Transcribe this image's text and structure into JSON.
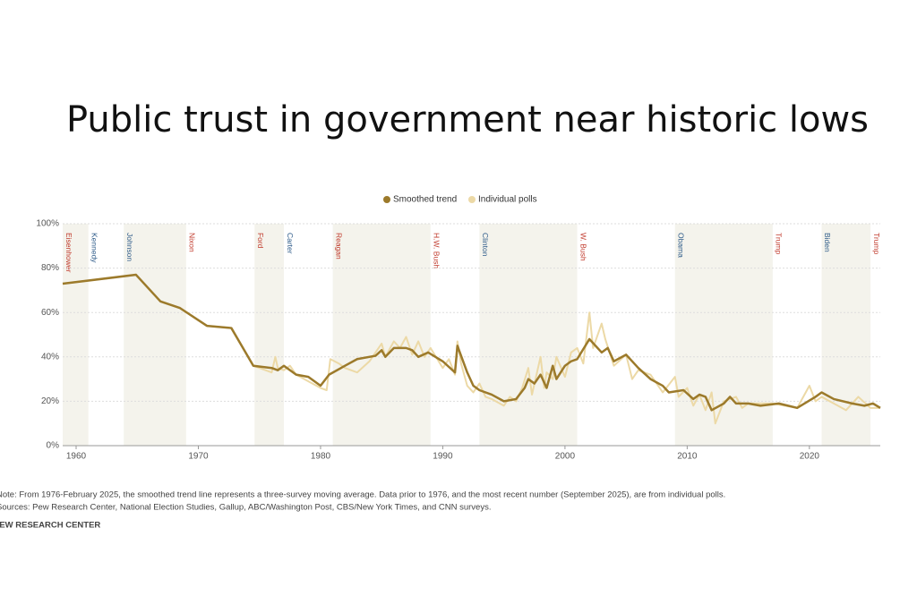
{
  "chart_data": {
    "type": "line",
    "title": "Public trust in government near historic lows",
    "note": "Note: From 1976-February 2025, the smoothed trend line represents a three-survey moving average. Data prior to 1976, and the most recent number (September 2025), are from individual polls.",
    "source": "Sources: Pew Research Center, National Election Studies, Gallup, ABC/Washington Post, CBS/New York Times, and CNN surveys.",
    "credit": "PEW RESEARCH CENTER",
    "xlim": [
      1958.9,
      2025.8
    ],
    "xticks": [
      1960,
      1970,
      1980,
      1990,
      2000,
      2010,
      2020
    ],
    "ylim": [
      0,
      100
    ],
    "yticks": [
      {
        "value": 0,
        "label": "0%"
      },
      {
        "value": 20,
        "label": "20%"
      },
      {
        "value": 40,
        "label": "40%"
      },
      {
        "value": 60,
        "label": "60%"
      },
      {
        "value": 80,
        "label": "80%"
      },
      {
        "value": 100,
        "label": "100%"
      }
    ],
    "grid": true,
    "presidents": [
      {
        "name": "Eisenhower",
        "start": 1958.9,
        "end": 1961,
        "color": "#c0392b",
        "shaded": true
      },
      {
        "name": "Kennedy",
        "start": 1961,
        "end": 1963.9,
        "color": "#2f5c8a",
        "shaded": false
      },
      {
        "name": "Johnson",
        "start": 1963.9,
        "end": 1969,
        "color": "#2f5c8a",
        "shaded": true
      },
      {
        "name": "Nixon",
        "start": 1969,
        "end": 1974.6,
        "color": "#c0392b",
        "shaded": false
      },
      {
        "name": "Ford",
        "start": 1974.6,
        "end": 1977,
        "color": "#c0392b",
        "shaded": true
      },
      {
        "name": "Carter",
        "start": 1977,
        "end": 1981,
        "color": "#2f5c8a",
        "shaded": false
      },
      {
        "name": "Reagan",
        "start": 1981,
        "end": 1989,
        "color": "#c0392b",
        "shaded": true
      },
      {
        "name": "H.W. Bush",
        "start": 1989,
        "end": 1993,
        "color": "#c0392b",
        "shaded": false
      },
      {
        "name": "Clinton",
        "start": 1993,
        "end": 2001,
        "color": "#2f5c8a",
        "shaded": true
      },
      {
        "name": "W. Bush",
        "start": 2001,
        "end": 2009,
        "color": "#c0392b",
        "shaded": false
      },
      {
        "name": "Obama",
        "start": 2009,
        "end": 2017,
        "color": "#2f5c8a",
        "shaded": true
      },
      {
        "name": "Trump",
        "start": 2017,
        "end": 2021,
        "color": "#c0392b",
        "shaded": false
      },
      {
        "name": "Biden",
        "start": 2021,
        "end": 2025,
        "color": "#2f5c8a",
        "shaded": true
      },
      {
        "name": "Trump",
        "start": 2025,
        "end": 2025.8,
        "color": "#c0392b",
        "shaded": false
      }
    ],
    "series": [
      {
        "name": "Individual polls",
        "color": "#ecd9a6",
        "x": [
          1958.9,
          1964.9,
          1966.9,
          1968.5,
          1970.7,
          1972.7,
          1974.5,
          1975.5,
          1976,
          1976.3,
          1976.5,
          1977,
          1977.5,
          1978,
          1979,
          1980,
          1980.5,
          1980.8,
          1981.5,
          1982,
          1983,
          1984,
          1984.5,
          1985,
          1985.3,
          1986,
          1986.5,
          1987,
          1987.5,
          1988,
          1988.5,
          1989,
          1990,
          1990.5,
          1991,
          1991.2,
          1991.5,
          1992,
          1992.5,
          1993,
          1993.5,
          1994,
          1995,
          1995.5,
          1996,
          1996.5,
          1997,
          1997.3,
          1998,
          1998.3,
          1998.5,
          1999,
          1999.3,
          2000,
          2000.5,
          2001,
          2001.5,
          2002,
          2002.3,
          2003,
          2003.3,
          2004,
          2005,
          2005.5,
          2006,
          2007,
          2008,
          2009,
          2009.3,
          2010,
          2010.5,
          2011,
          2011.5,
          2012,
          2012.3,
          2013,
          2014,
          2014.5,
          2015,
          2016,
          2017,
          2018,
          2019,
          2020,
          2020.5,
          2021,
          2022,
          2023,
          2024,
          2025,
          2025.8
        ],
        "values": [
          73,
          77,
          65,
          62,
          54,
          53,
          36,
          34,
          33,
          40,
          35,
          34,
          36,
          32,
          29,
          26,
          25,
          39,
          37,
          35,
          33,
          38,
          42,
          46,
          40,
          47,
          44,
          49,
          41,
          47,
          40,
          44,
          35,
          39,
          32,
          47,
          37,
          27,
          24,
          28,
          22,
          21,
          18,
          22,
          20,
          26,
          35,
          23,
          40,
          26,
          33,
          30,
          40,
          31,
          42,
          44,
          37,
          60,
          44,
          55,
          48,
          36,
          41,
          30,
          34,
          32,
          24,
          31,
          22,
          26,
          18,
          23,
          16,
          24,
          10,
          20,
          22,
          17,
          19,
          19,
          19,
          18,
          17,
          27,
          20,
          22,
          19,
          16,
          22,
          17,
          17
        ]
      },
      {
        "name": "Smoothed trend",
        "color": "#9c7a2b",
        "x": [
          1958.9,
          1964.9,
          1966.9,
          1968.5,
          1970.7,
          1972.7,
          1974.5,
          1976,
          1976.5,
          1977,
          1978,
          1979,
          1980,
          1980.7,
          1982,
          1983,
          1984.5,
          1985,
          1985.3,
          1986,
          1987,
          1987.5,
          1988,
          1988.8,
          1990,
          1991,
          1991.2,
          1992,
          1992.5,
          1993,
          1994,
          1995,
          1996,
          1996.7,
          1997,
          1997.5,
          1998,
          1998.5,
          1999,
          1999.3,
          2000,
          2000.5,
          2001,
          2002,
          2003,
          2003.5,
          2004,
          2005,
          2006,
          2007,
          2008,
          2008.5,
          2009.7,
          2010.5,
          2011,
          2011.5,
          2012,
          2013,
          2013.5,
          2014,
          2015,
          2016,
          2017.5,
          2019,
          2020.5,
          2021,
          2022,
          2023.5,
          2024.5,
          2025.2,
          2025.8
        ],
        "values": [
          73,
          77,
          65,
          62,
          54,
          53,
          36,
          35,
          34,
          36,
          32,
          31,
          27,
          32,
          36,
          39,
          40.5,
          43,
          40,
          44,
          44,
          43,
          40,
          42,
          38,
          33,
          45,
          33,
          27,
          25,
          23,
          20,
          21,
          26,
          30,
          28,
          32,
          26,
          36,
          30,
          36,
          38,
          39,
          48,
          42,
          44,
          38,
          41,
          35,
          30,
          27,
          24,
          25,
          21,
          23,
          22,
          16,
          19,
          22,
          19,
          19,
          18,
          19,
          17,
          22,
          24,
          21,
          19,
          18,
          19,
          17
        ]
      }
    ]
  }
}
